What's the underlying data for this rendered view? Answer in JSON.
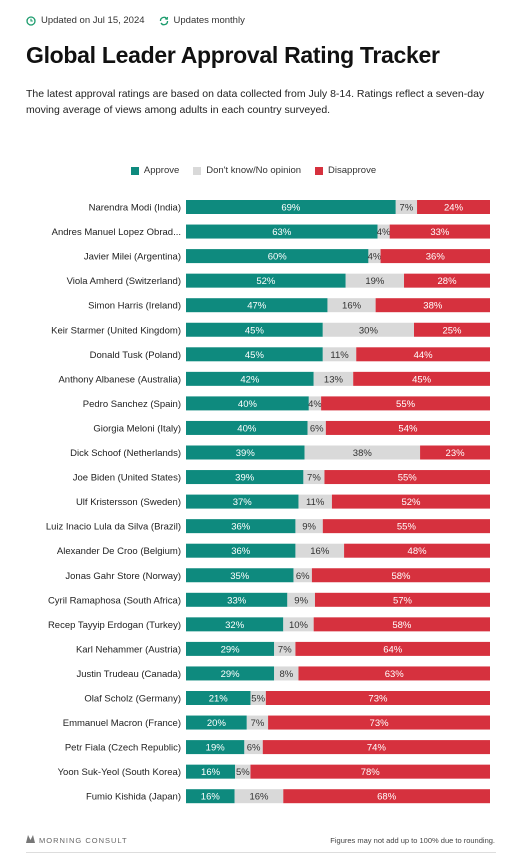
{
  "header": {
    "updated_label": "Updated on Jul 15, 2024",
    "frequency_label": "Updates monthly",
    "title": "Global Leader Approval Rating Tracker",
    "subtitle": "The latest approval ratings are based on data collected from July 8-14. Ratings reflect a seven-day moving average of views among adults in each country surveyed."
  },
  "legend": {
    "approve": "Approve",
    "neutral": "Don't know/No opinion",
    "disapprove": "Disapprove"
  },
  "colors": {
    "approve": "#0e8a7e",
    "neutral": "#d9d9d9",
    "disapprove": "#d6313e"
  },
  "icons": {
    "updated": "clock-refresh-icon",
    "frequency": "cycle-arrows-icon",
    "brand": "morning-consult-logo-icon"
  },
  "footer": {
    "brand": "MORNING CONSULT",
    "note": "Figures may not add up to 100% due to rounding."
  },
  "chart_data": {
    "type": "bar",
    "orientation": "horizontal",
    "stacked": true,
    "normalized": true,
    "legend_position": "top-center",
    "categories": [
      "Narendra Modi (India)",
      "Andres Manuel Lopez Obrad...",
      "Javier Milei (Argentina)",
      "Viola Amherd (Switzerland)",
      "Simon Harris (Ireland)",
      "Keir Starmer (United Kingdom)",
      "Donald Tusk (Poland)",
      "Anthony Albanese (Australia)",
      "Pedro Sanchez (Spain)",
      "Giorgia Meloni (Italy)",
      "Dick Schoof (Netherlands)",
      "Joe Biden (United States)",
      "Ulf Kristersson (Sweden)",
      "Luiz Inacio Lula da Silva (Brazil)",
      "Alexander De Croo (Belgium)",
      "Jonas Gahr Store (Norway)",
      "Cyril Ramaphosa (South Africa)",
      "Recep Tayyip Erdogan (Turkey)",
      "Karl Nehammer (Austria)",
      "Justin Trudeau (Canada)",
      "Olaf Scholz (Germany)",
      "Emmanuel Macron (France)",
      "Petr Fiala (Czech Republic)",
      "Yoon Suk-Yeol (South Korea)",
      "Fumio Kishida (Japan)"
    ],
    "series": [
      {
        "name": "Approve",
        "values": [
          69,
          63,
          60,
          52,
          47,
          45,
          45,
          42,
          40,
          40,
          39,
          39,
          37,
          36,
          36,
          35,
          33,
          32,
          29,
          29,
          21,
          20,
          19,
          16,
          16
        ]
      },
      {
        "name": "Don't know/No opinion",
        "values": [
          7,
          4,
          4,
          19,
          16,
          30,
          11,
          13,
          4,
          6,
          38,
          7,
          11,
          9,
          16,
          6,
          9,
          10,
          7,
          8,
          5,
          7,
          6,
          5,
          16
        ]
      },
      {
        "name": "Disapprove",
        "values": [
          24,
          33,
          36,
          28,
          38,
          25,
          44,
          45,
          55,
          54,
          23,
          55,
          52,
          55,
          48,
          58,
          57,
          58,
          64,
          63,
          73,
          73,
          74,
          78,
          68
        ]
      }
    ],
    "unit": "%"
  }
}
